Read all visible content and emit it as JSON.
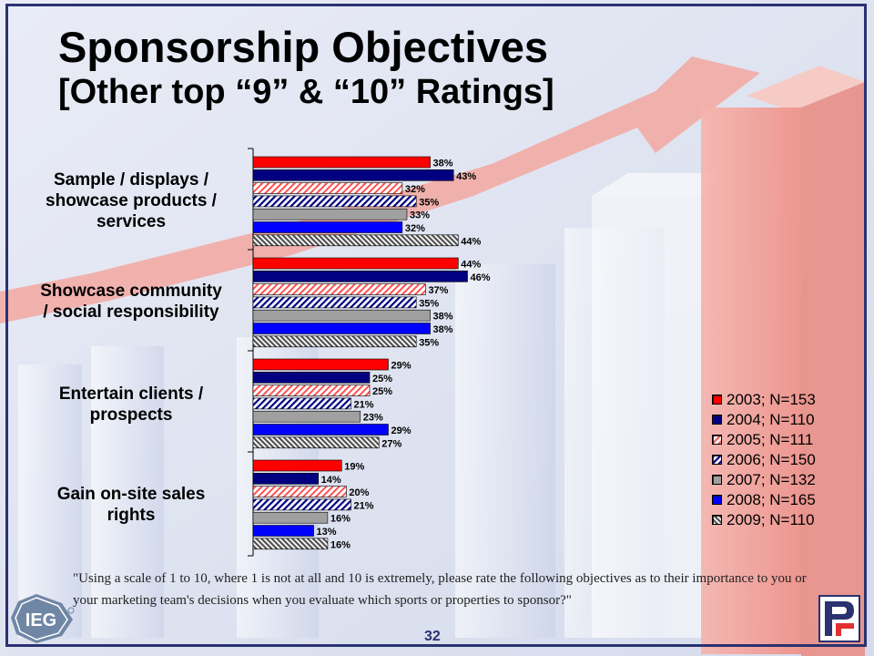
{
  "slide": {
    "title_line1": "Sponsorship Objectives",
    "title_line2": "[Other top “9” & “10” Ratings]",
    "footnote": "\"Using a scale of 1 to 10, where 1 is not at all and 10 is extremely, please rate the following objectives as to their importance to you or your marketing team's decisions when you evaluate which sports or properties to sponsor?\"",
    "page_number": "32",
    "logo_left": "IEG",
    "logo_right": "PF"
  },
  "chart_data": {
    "type": "bar",
    "orientation": "horizontal",
    "categories": [
      "Sample / displays / showcase products / services",
      "Showcase community / social responsibility",
      "Entertain clients / prospects",
      "Gain on-site sales rights"
    ],
    "category_lines": [
      [
        "Sample / displays /",
        "showcase products /",
        "services"
      ],
      [
        "Showcase community",
        "/ social responsibility"
      ],
      [
        "Entertain clients /",
        "prospects"
      ],
      [
        "Gain on-site sales",
        "rights"
      ]
    ],
    "series": [
      {
        "name": "2003; N=153",
        "values": [
          38,
          44,
          29,
          19
        ],
        "color": "#ff0000",
        "pattern": "solid"
      },
      {
        "name": "2004; N=110",
        "values": [
          43,
          46,
          25,
          14
        ],
        "color": "#000080",
        "pattern": "solid"
      },
      {
        "name": "2005; N=111",
        "values": [
          32,
          37,
          25,
          20
        ],
        "color": "#ff5050",
        "pattern": "diag-light"
      },
      {
        "name": "2006; N=150",
        "values": [
          35,
          35,
          21,
          21
        ],
        "color": "#000080",
        "pattern": "diag-dark"
      },
      {
        "name": "2007; N=132",
        "values": [
          33,
          38,
          23,
          16
        ],
        "color": "#a0a0a0",
        "pattern": "solid"
      },
      {
        "name": "2008; N=165",
        "values": [
          32,
          38,
          29,
          13
        ],
        "color": "#0000ff",
        "pattern": "solid"
      },
      {
        "name": "2009; N=110",
        "values": [
          44,
          35,
          27,
          16
        ],
        "color": "#808080",
        "pattern": "diag-gray"
      }
    ],
    "value_suffix": "%",
    "legend_position": "right",
    "xlim": [
      0,
      100
    ]
  }
}
